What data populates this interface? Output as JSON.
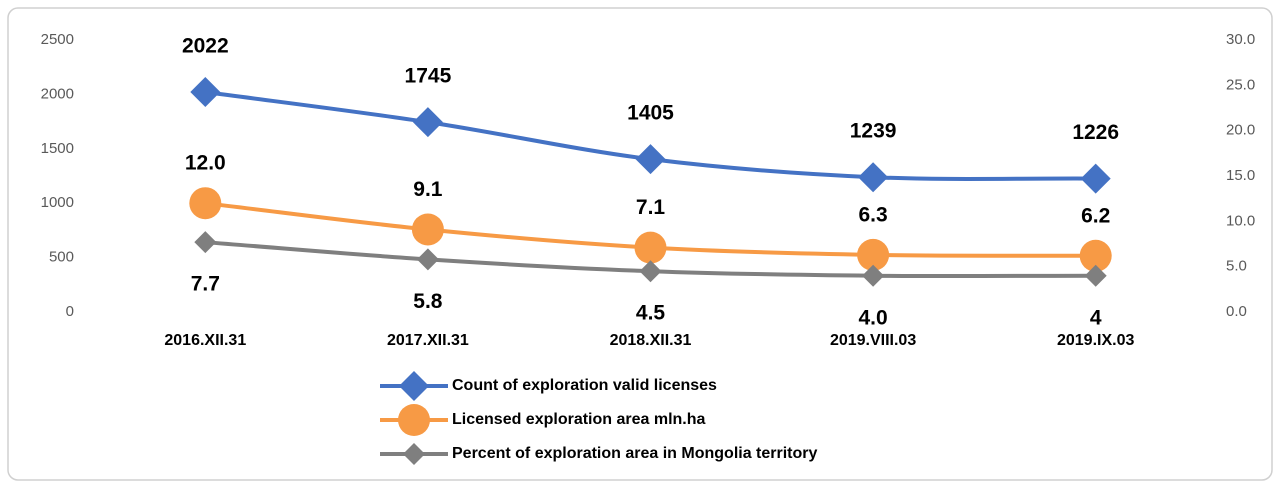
{
  "chart_data": {
    "type": "line",
    "categories": [
      "2016.XII.31",
      "2017.XII.31",
      "2018.XII.31",
      "2019.VIII.03",
      "2019.IX.03"
    ],
    "series": [
      {
        "name": "Count of exploration valid licenses",
        "color": "#4472c4",
        "marker": "diamond",
        "axis": "y",
        "values": [
          2022,
          1745,
          1405,
          1239,
          1226
        ]
      },
      {
        "name": "Licensed exploration area mln.ha",
        "color": "#f79a45",
        "marker": "circle",
        "axis": "y2",
        "values": [
          12.0,
          9.1,
          7.1,
          6.3,
          6.2
        ],
        "value_labels": [
          "12.0",
          "9.1",
          "7.1",
          "6.3",
          "6.2"
        ]
      },
      {
        "name": "Percent of exploration area in Mongolia territory",
        "color": "#7f7f7f",
        "marker": "small-diamond",
        "axis": "y2",
        "values": [
          7.7,
          5.8,
          4.5,
          4.0,
          4
        ],
        "value_labels": [
          "7.7",
          "5.8",
          "4.5",
          "4.0",
          "4"
        ]
      }
    ],
    "ylim": [
      0,
      2500
    ],
    "yticks": [
      0,
      500,
      1000,
      1500,
      2000,
      2500
    ],
    "y2lim": [
      0,
      30
    ],
    "y2ticks": [
      {
        "value": 0,
        "label": "0.0"
      },
      {
        "value": 5,
        "label": "5.0"
      },
      {
        "value": 10,
        "label": "10.0"
      },
      {
        "value": 15,
        "label": "15.0"
      },
      {
        "value": 20,
        "label": "20.0"
      },
      {
        "value": 25,
        "label": "25.0"
      },
      {
        "value": 30,
        "label": "30.0"
      }
    ],
    "grid": false,
    "legend": "bottom"
  }
}
